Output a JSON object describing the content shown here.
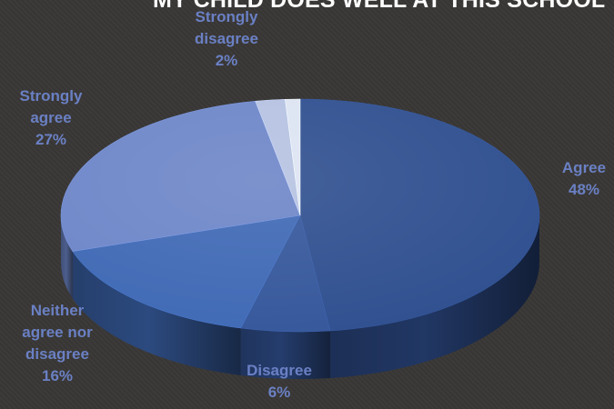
{
  "chart_data": {
    "type": "pie",
    "title": "MY CHILD DOES WELL AT THIS SCHOOL",
    "slices": [
      {
        "name": "Agree",
        "value": 48,
        "color": "#2f4f8f",
        "label": [
          "Agree",
          "48%"
        ]
      },
      {
        "name": "Disagree",
        "value": 6,
        "color": "#35579b",
        "label": [
          "Disagree",
          "6%"
        ]
      },
      {
        "name": "Neither agree nor disagree",
        "value": 16,
        "color": "#3f69b5",
        "label": [
          "Neither",
          "agree nor",
          "disagree",
          "16%"
        ]
      },
      {
        "name": "Strongly agree",
        "value": 27,
        "color": "#6d86c8",
        "label": [
          "Strongly",
          "agree",
          "27%"
        ]
      },
      {
        "name": "Strongly disagree",
        "value": 2,
        "color": "#b6c2e2",
        "label": [
          "Strongly",
          "disagree",
          "2%"
        ]
      },
      {
        "name": "",
        "value": 1,
        "color": "#dde4f2",
        "label": []
      }
    ],
    "label_color": "#6a80c4",
    "title_color": "#ffffff"
  }
}
